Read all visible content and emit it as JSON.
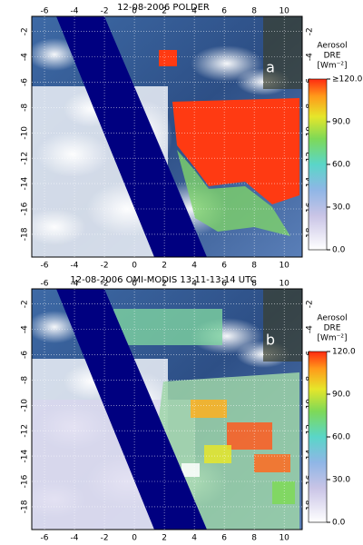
{
  "panels": [
    {
      "title": "12-08-2006 POLDER",
      "letter": "a",
      "xlim": [
        -6.85,
        11.2
      ],
      "ylim": [
        -19.8,
        -0.8
      ],
      "xticks": [
        -6,
        -4,
        -2,
        0,
        2,
        4,
        6,
        8,
        10
      ],
      "yticks": [
        -2,
        -4,
        -6,
        -8,
        -10,
        -12,
        -14,
        -16,
        -18
      ],
      "colorbar": {
        "title": [
          "Aerosol",
          "DRE",
          "[Wm⁻²]"
        ],
        "lim": [
          0,
          120
        ],
        "ticks": [
          {
            "value": 0,
            "label": "0.0"
          },
          {
            "value": 30,
            "label": "30.0"
          },
          {
            "value": 60,
            "label": "60.0"
          },
          {
            "value": 90,
            "label": "90.0"
          },
          {
            "value": 120,
            "label": "≥120.0"
          }
        ]
      }
    },
    {
      "title": "12-08-2006  OMI-MODIS 13:11-13:14 UTC",
      "letter": "b",
      "xlim": [
        -6.85,
        11.2
      ],
      "ylim": [
        -19.8,
        -0.8
      ],
      "xticks": [
        -6,
        -4,
        -2,
        0,
        2,
        4,
        6,
        8,
        10
      ],
      "yticks": [
        -2,
        -4,
        -6,
        -8,
        -10,
        -12,
        -14,
        -16,
        -18
      ],
      "colorbar": {
        "title": [
          "Aerosol",
          "DRE",
          "[Wm⁻²]"
        ],
        "lim": [
          0,
          120
        ],
        "ticks": [
          {
            "value": 0,
            "label": "0.0"
          },
          {
            "value": 30,
            "label": "30.0"
          },
          {
            "value": 60,
            "label": "60.0"
          },
          {
            "value": 90,
            "label": "90.0"
          },
          {
            "value": 120,
            "label": "120.0"
          }
        ]
      }
    }
  ]
}
